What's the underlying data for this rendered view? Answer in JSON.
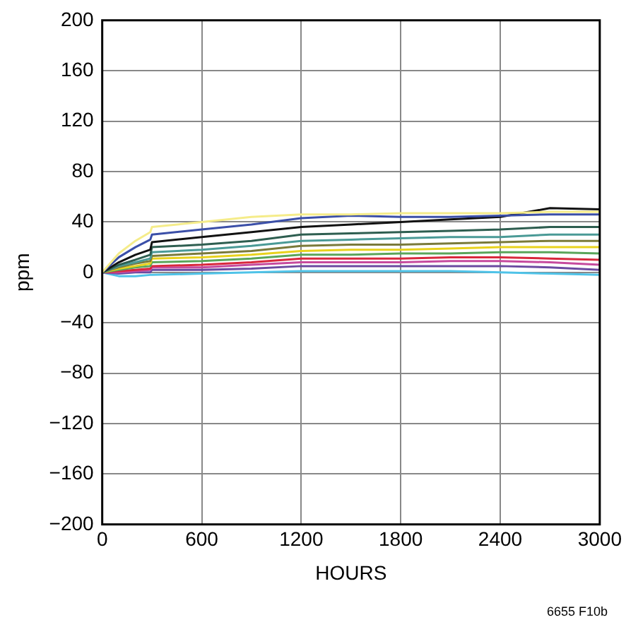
{
  "chart_data": {
    "type": "line",
    "xlabel": "HOURS",
    "ylabel": "ppm",
    "x": [
      0,
      100,
      200,
      290,
      300,
      600,
      900,
      1200,
      1500,
      1800,
      2100,
      2400,
      2700,
      3000
    ],
    "series": [
      {
        "color": "#f5ec8a",
        "values": [
          0,
          15,
          25,
          32,
          36,
          40,
          44,
          46,
          46,
          47,
          47,
          47,
          48,
          48
        ]
      },
      {
        "color": "#3b4fa8",
        "values": [
          0,
          12,
          20,
          26,
          30,
          34,
          38,
          43,
          45,
          44,
          44,
          45,
          46,
          46
        ]
      },
      {
        "color": "#111111",
        "values": [
          0,
          8,
          14,
          18,
          24,
          28,
          32,
          36,
          38,
          40,
          42,
          44,
          51,
          50
        ]
      },
      {
        "color": "#2e5e50",
        "values": [
          0,
          6,
          10,
          14,
          20,
          22,
          25,
          30,
          31,
          32,
          33,
          34,
          36,
          36
        ]
      },
      {
        "color": "#4a9a96",
        "values": [
          0,
          5,
          8,
          11,
          16,
          18,
          21,
          25,
          26,
          27,
          28,
          28,
          30,
          30
        ]
      },
      {
        "color": "#7a7a3a",
        "values": [
          0,
          4,
          7,
          9,
          13,
          15,
          17,
          21,
          22,
          22,
          23,
          24,
          25,
          25
        ]
      },
      {
        "color": "#e8d21c",
        "values": [
          0,
          3,
          5,
          7,
          11,
          12,
          14,
          17,
          18,
          18,
          19,
          20,
          20,
          20
        ]
      },
      {
        "color": "#5aa55a",
        "values": [
          0,
          2,
          4,
          5,
          8,
          9,
          11,
          14,
          14,
          15,
          15,
          16,
          16,
          15
        ]
      },
      {
        "color": "#d8283c",
        "values": [
          0,
          1,
          2,
          3,
          5,
          6,
          8,
          11,
          11,
          11,
          12,
          12,
          11,
          10
        ]
      },
      {
        "color": "#c64a9e",
        "values": [
          0,
          0,
          1,
          2,
          4,
          4,
          6,
          8,
          8,
          8,
          9,
          9,
          8,
          6
        ]
      },
      {
        "color": "#6a4aa0",
        "values": [
          0,
          -1,
          0,
          0,
          2,
          2,
          3,
          5,
          5,
          5,
          5,
          5,
          4,
          2
        ]
      },
      {
        "color": "#4fc3e8",
        "values": [
          0,
          -3,
          -3,
          -2,
          -2,
          -1,
          0,
          1,
          1,
          1,
          1,
          0,
          -1,
          -2
        ]
      }
    ],
    "xlim": [
      0,
      3000
    ],
    "xticks": [
      0,
      600,
      1200,
      1800,
      2400,
      3000
    ],
    "ylim": [
      -200,
      200
    ],
    "yticks": [
      {
        "value": -200,
        "label": "−200"
      },
      {
        "value": -160,
        "label": "−160"
      },
      {
        "value": -120,
        "label": "−120"
      },
      {
        "value": -80,
        "label": "−80"
      },
      {
        "value": -40,
        "label": "−40"
      },
      0,
      40,
      80,
      120,
      160,
      200
    ],
    "grid": true,
    "legend": false,
    "marker": "none",
    "line_style": "solid",
    "annotations": [
      "6655 F10b"
    ]
  }
}
